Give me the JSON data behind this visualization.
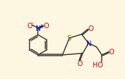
{
  "bg_color": "#fdf6e0",
  "line_color": "#3a3a3a",
  "atom_colors": {
    "O": "#c00000",
    "N": "#0000bb",
    "S": "#707000",
    "C": "#3a3a3a"
  },
  "lw": 1.1
}
